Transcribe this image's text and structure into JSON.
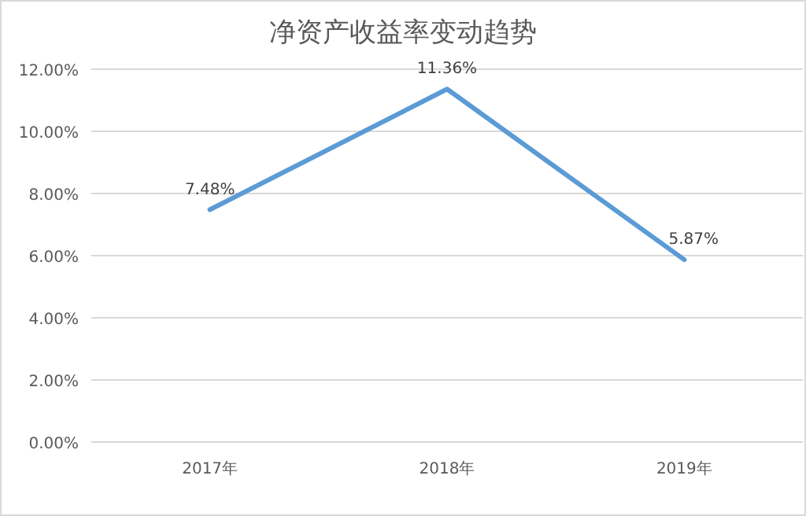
{
  "chart_data": {
    "type": "line",
    "title": "净资产收益率变动趋势",
    "categories": [
      "2017年",
      "2018年",
      "2019年"
    ],
    "series": [
      {
        "color": "#5b9bd5",
        "values": [
          7.48,
          11.36,
          5.87
        ],
        "value_labels": [
          "7.48%",
          "11.36%",
          "5.87%"
        ]
      }
    ],
    "ylim": [
      0,
      12
    ],
    "yticks": [
      {
        "value": 0,
        "label": "0.00%"
      },
      {
        "value": 2,
        "label": "2.00%"
      },
      {
        "value": 4,
        "label": "4.00%"
      },
      {
        "value": 6,
        "label": "6.00%"
      },
      {
        "value": 8,
        "label": "8.00%"
      },
      {
        "value": 10,
        "label": "10.00%"
      },
      {
        "value": 12,
        "label": "12.00%"
      }
    ],
    "grid": "y",
    "marker": "none",
    "line_style": "solid"
  }
}
